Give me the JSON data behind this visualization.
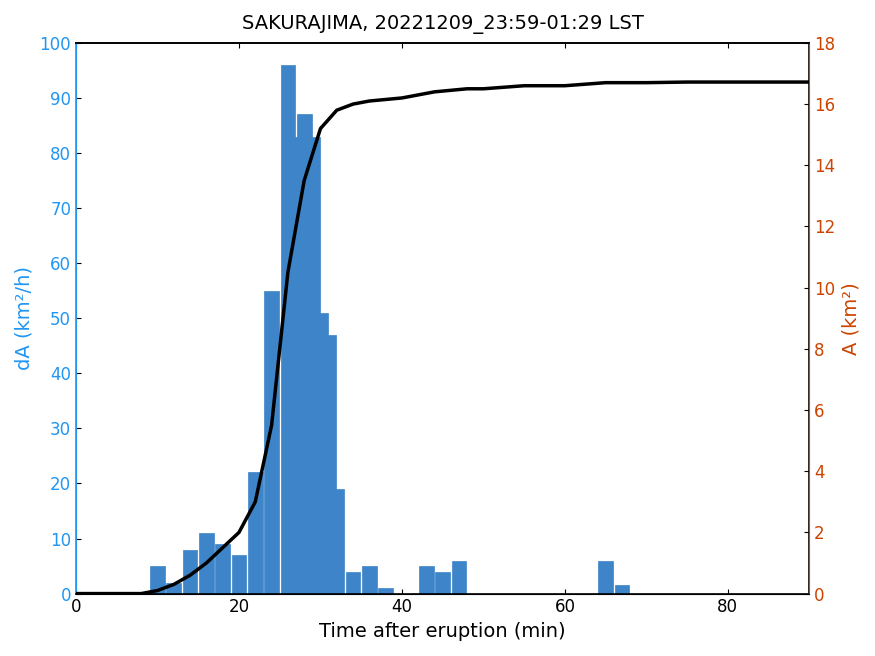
{
  "title": "SAKURAJIMA, 20221209_23:59-01:29 LST",
  "xlabel": "Time after eruption (min)",
  "ylabel_left": "dA (km²/h)",
  "ylabel_right": "A (km²)",
  "bar_color": "#3d85c8",
  "line_color": "#000000",
  "left_color": "#2196f3",
  "right_color": "#cc4400",
  "xlim": [
    0,
    90
  ],
  "ylim_left": [
    0,
    100
  ],
  "ylim_right": [
    0,
    18
  ],
  "xticks": [
    0,
    20,
    40,
    60,
    80
  ],
  "yticks_left": [
    0,
    10,
    20,
    30,
    40,
    50,
    60,
    70,
    80,
    90,
    100
  ],
  "yticks_right": [
    0,
    2,
    4,
    6,
    8,
    10,
    12,
    14,
    16,
    18
  ],
  "bar_centers": [
    10,
    12,
    14,
    16,
    18,
    20,
    22,
    24,
    26,
    27,
    28,
    29,
    30,
    31,
    32,
    34,
    36,
    38,
    43,
    45,
    47,
    65,
    67
  ],
  "bar_heights": [
    5,
    2,
    8,
    11,
    9,
    7,
    22,
    55,
    96,
    83,
    87,
    83,
    51,
    47,
    19,
    4,
    5,
    1,
    5,
    4,
    6,
    6,
    1.5
  ],
  "bar_width": 1.8,
  "line_x": [
    0,
    8,
    10,
    12,
    14,
    16,
    18,
    20,
    22,
    24,
    26,
    28,
    30,
    32,
    34,
    36,
    38,
    40,
    42,
    44,
    46,
    48,
    50,
    55,
    60,
    65,
    70,
    75,
    80,
    85,
    90
  ],
  "line_y": [
    0,
    0,
    0.1,
    0.3,
    0.6,
    1.0,
    1.5,
    2.0,
    3.0,
    5.5,
    10.5,
    13.5,
    15.2,
    15.8,
    16.0,
    16.1,
    16.15,
    16.2,
    16.3,
    16.4,
    16.45,
    16.5,
    16.5,
    16.6,
    16.6,
    16.7,
    16.7,
    16.72,
    16.72,
    16.72,
    16.72
  ]
}
